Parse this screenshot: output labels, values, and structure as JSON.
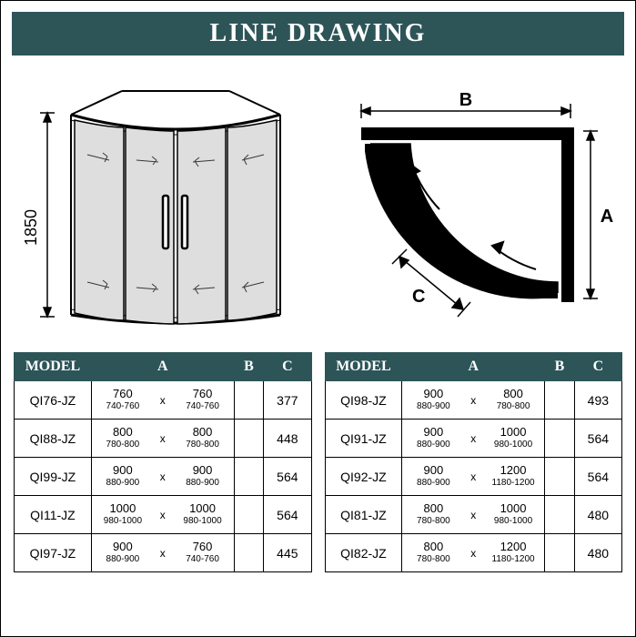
{
  "title": "LINE DRAWING",
  "colors": {
    "header_bg": "#2d5558",
    "header_text": "#ffffff",
    "border": "#000000",
    "page_bg": "#ffffff",
    "glass_fill": "#e8e8e8"
  },
  "diagram_front": {
    "height_label": "1850",
    "stroke": "#000000",
    "glass": "#d8d8d8"
  },
  "diagram_top": {
    "label_A": "A",
    "label_B": "B",
    "label_C": "C",
    "stroke": "#000000",
    "fill": "#1a1a1a"
  },
  "table_headers": [
    "MODEL",
    "A",
    "B",
    "C"
  ],
  "left_table": [
    {
      "model": "QI76-JZ",
      "a_main": "760",
      "a_range": "740-760",
      "b_main": "760",
      "b_range": "740-760",
      "c": "377"
    },
    {
      "model": "QI88-JZ",
      "a_main": "800",
      "a_range": "780-800",
      "b_main": "800",
      "b_range": "780-800",
      "c": "448"
    },
    {
      "model": "QI99-JZ",
      "a_main": "900",
      "a_range": "880-900",
      "b_main": "900",
      "b_range": "880-900",
      "c": "564"
    },
    {
      "model": "QI11-JZ",
      "a_main": "1000",
      "a_range": "980-1000",
      "b_main": "1000",
      "b_range": "980-1000",
      "c": "564"
    },
    {
      "model": "QI97-JZ",
      "a_main": "900",
      "a_range": "880-900",
      "b_main": "760",
      "b_range": "740-760",
      "c": "445"
    }
  ],
  "right_table": [
    {
      "model": "QI98-JZ",
      "a_main": "900",
      "a_range": "880-900",
      "b_main": "800",
      "b_range": "780-800",
      "c": "493"
    },
    {
      "model": "QI91-JZ",
      "a_main": "900",
      "a_range": "880-900",
      "b_main": "1000",
      "b_range": "980-1000",
      "c": "564"
    },
    {
      "model": "QI92-JZ",
      "a_main": "900",
      "a_range": "880-900",
      "b_main": "1200",
      "b_range": "1180-1200",
      "c": "564"
    },
    {
      "model": "QI81-JZ",
      "a_main": "800",
      "a_range": "780-800",
      "b_main": "1000",
      "b_range": "980-1000",
      "c": "480"
    },
    {
      "model": "QI82-JZ",
      "a_main": "800",
      "a_range": "780-800",
      "b_main": "1200",
      "b_range": "1180-1200",
      "c": "480"
    }
  ],
  "separator": "x"
}
